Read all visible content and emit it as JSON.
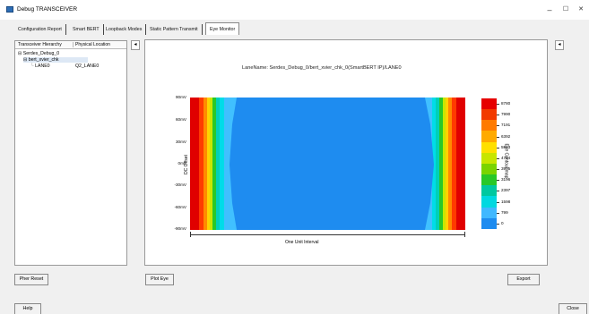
{
  "window": {
    "title": "Debug TRANSCEIVER",
    "minimize_label": "–",
    "maximize_label": "☐",
    "close_label": "✕"
  },
  "tabs": [
    {
      "label": "Configuration Report"
    },
    {
      "label": "Smart BERT"
    },
    {
      "label": "Loopback Modes"
    },
    {
      "label": "Static Pattern Transmit"
    },
    {
      "label": "Eye Monitor"
    }
  ],
  "tree": {
    "col_hierarchy": "Transceiver Hierarchy",
    "col_location": "Physical Location",
    "root": "⊟ Serdes_Debug_0",
    "child": "⊟ bert_xvier_chk",
    "lane_name": "LANE0",
    "lane_location": "Q2_LANE0",
    "collapse_label": "◂"
  },
  "main": {
    "collapse_label": "◂",
    "lane_title": "LaneName: Serdes_Debug_0/bert_xvier_chk_0(SmartBERT IP)/LANE0",
    "ylabel": "DC Offset",
    "xlabel": "One Unit Interval",
    "yticks": [
      "90mV",
      "60mV",
      "30mV",
      "0mV",
      "-30mV",
      "-60mV",
      "-90mV"
    ]
  },
  "colorbar": {
    "title": "Eye Contour map",
    "labels": [
      "8780",
      "7990",
      "7191",
      "6392",
      "5593",
      "4794",
      "3995",
      "3196",
      "2397",
      "1598",
      "799",
      "0"
    ],
    "colors": [
      "#e60000",
      "#f23a00",
      "#ff7a00",
      "#ffaa00",
      "#ffe000",
      "#c8e600",
      "#7ad400",
      "#28c828",
      "#00c8a0",
      "#00d8e0",
      "#40b8ff",
      "#1e8cf0"
    ]
  },
  "buttons": {
    "pher_reset": "Pher Reset",
    "plot_eye": "Plot Eye",
    "export": "Export",
    "help": "Help",
    "close": "Close"
  }
}
